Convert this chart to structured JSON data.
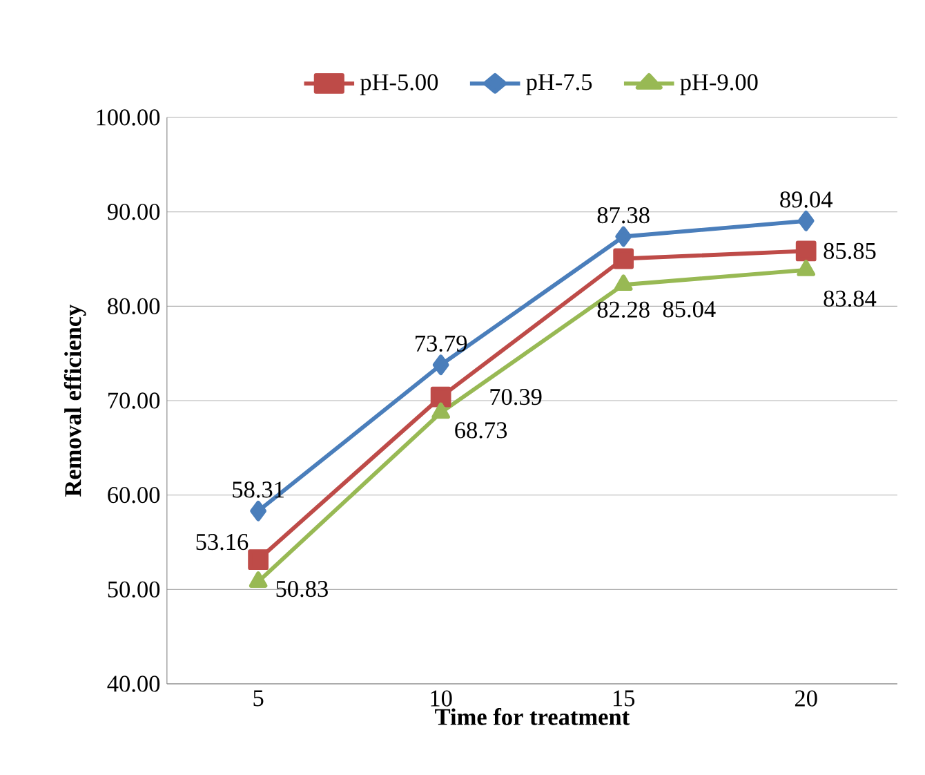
{
  "chart_data": {
    "type": "line",
    "xlabel": "Time for treatment",
    "ylabel": "Removal efficiency",
    "categories": [
      "5",
      "10",
      "15",
      "20"
    ],
    "series": [
      {
        "name": "pH-5.00",
        "color": "#be4b48",
        "marker": "square",
        "values": [
          53.16,
          70.39,
          85.04,
          85.85
        ]
      },
      {
        "name": "pH-7.5",
        "color": "#4a7ebb",
        "marker": "diamond",
        "values": [
          58.31,
          73.79,
          87.38,
          89.04
        ]
      },
      {
        "name": "pH-9.00",
        "color": "#98b954",
        "marker": "triangle",
        "values": [
          50.83,
          68.73,
          82.28,
          83.84
        ]
      }
    ],
    "ylim": [
      40,
      100
    ],
    "yticks": [
      {
        "value": 40,
        "label": "40.00"
      },
      {
        "value": 50,
        "label": "50.00"
      },
      {
        "value": 60,
        "label": "60.00"
      },
      {
        "value": 70,
        "label": "70.00"
      },
      {
        "value": 80,
        "label": "80.00"
      },
      {
        "value": 90,
        "label": "90.00"
      },
      {
        "value": 100,
        "label": "100.00"
      }
    ],
    "grid": "y",
    "legend": "top",
    "data_labels": true,
    "line_style": "solid"
  }
}
